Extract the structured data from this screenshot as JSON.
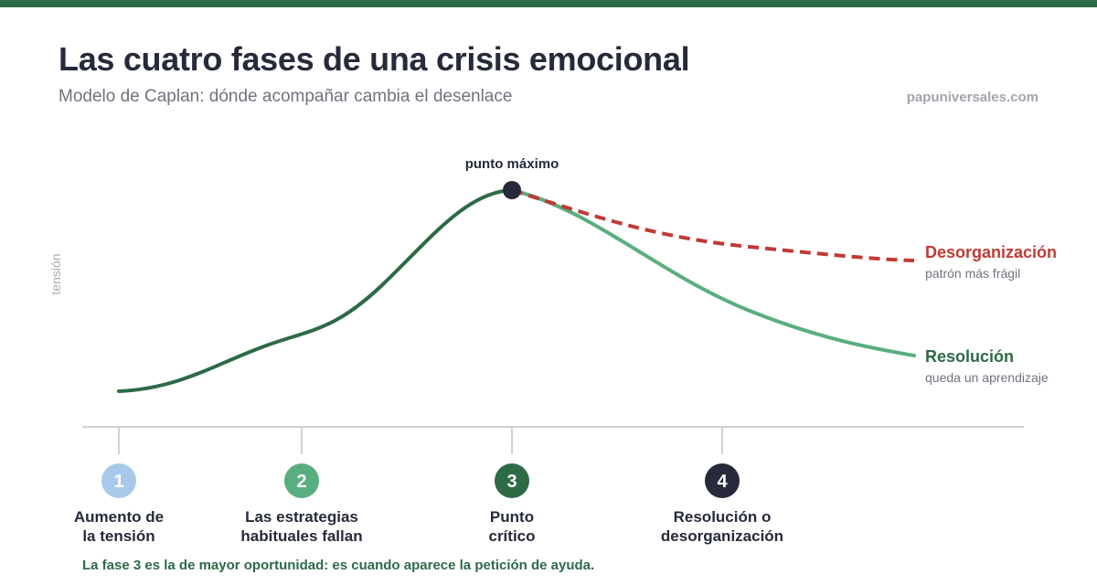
{
  "header": {
    "title": "Las cuatro fases de una crisis emocional",
    "subtitle": "Modelo de Caplan: dónde acompañar cambia el desenlace",
    "brand": "papuniversales.com"
  },
  "diagram": {
    "y_axis_label": "tensión",
    "peak_label": "punto máximo",
    "outcomes": {
      "disorganization": {
        "title": "Desorganización",
        "subtitle": "patrón más frágil",
        "color": "#c03a36"
      },
      "resolution": {
        "title": "Resolución",
        "subtitle": "queda un aprendizaje",
        "color": "#2d6a46"
      }
    },
    "colors": {
      "rise": "#2d6a46",
      "resolution_line": "#58ae7e",
      "peak_dot": "#262a3a",
      "baseline": "#cfd1d6"
    }
  },
  "phases": [
    {
      "number": "1",
      "line1": "Aumento de",
      "line2": "la tensión",
      "color": "#a9c9ea"
    },
    {
      "number": "2",
      "line1": "Las estrategias",
      "line2": "habituales fallan",
      "color": "#58ae7e"
    },
    {
      "number": "3",
      "line1": "Punto",
      "line2": "crítico",
      "color": "#2d6a46"
    },
    {
      "number": "4",
      "line1": "Resolución o",
      "line2": "desorganización",
      "color": "#262a3a"
    }
  ],
  "footnote": "La fase 3 es la de mayor oportunidad: es cuando aparece la petición de ayuda."
}
